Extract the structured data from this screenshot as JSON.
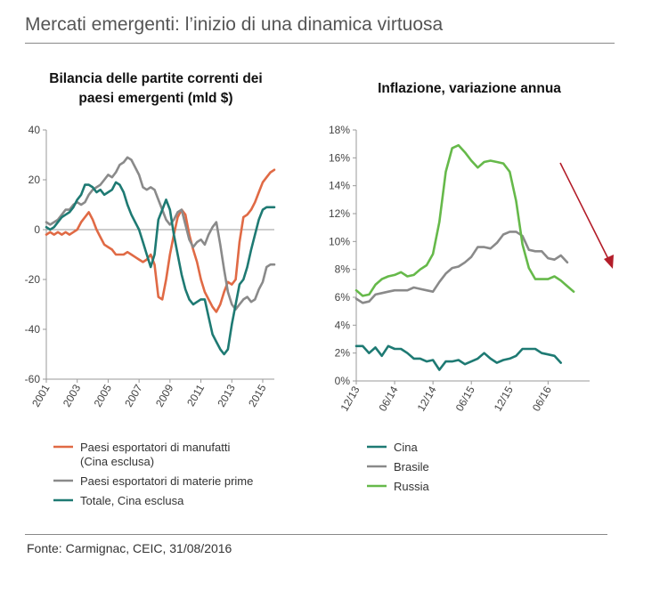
{
  "header": {
    "title": "Mercati emergenti: l’inizio di una dinamica virtuosa"
  },
  "source": "Fonte: Carmignac, CEIC, 31/08/2016",
  "colors": {
    "orange": "#e06a45",
    "gray": "#8a8a8a",
    "teal": "#1e7a73",
    "green": "#66b94a",
    "arrow": "#b31d29",
    "axis": "#999999"
  },
  "chart_data": [
    {
      "type": "line",
      "title_lines": [
        "Bilancia delle partite correnti dei",
        "paesi emergenti (mld $)"
      ],
      "xlim": [
        2001,
        2015.75
      ],
      "ylim": [
        -60,
        40
      ],
      "yticks": [
        40,
        20,
        0,
        -20,
        -40,
        -60
      ],
      "ytick_labels": [
        "40",
        "20",
        "0",
        "-20",
        "-40",
        "-60"
      ],
      "xticks": [
        2001,
        2003,
        2005,
        2007,
        2009,
        2011,
        2013,
        2015
      ],
      "xtick_labels": [
        "2001",
        "2003",
        "2005",
        "2007",
        "2009",
        "2011",
        "2013",
        "2015"
      ],
      "series": [
        {
          "name": "Paesi esportatori di manufatti",
          "name_line2": "(Cina esclusa)",
          "color": "orange",
          "x": [
            2001,
            2001.25,
            2001.5,
            2001.75,
            2002,
            2002.25,
            2002.5,
            2002.75,
            2003,
            2003.25,
            2003.5,
            2003.75,
            2004,
            2004.25,
            2004.5,
            2004.75,
            2005,
            2005.25,
            2005.5,
            2005.75,
            2006,
            2006.25,
            2006.5,
            2006.75,
            2007,
            2007.25,
            2007.5,
            2007.75,
            2008,
            2008.25,
            2008.5,
            2008.75,
            2009,
            2009.25,
            2009.5,
            2009.75,
            2010,
            2010.25,
            2010.5,
            2010.75,
            2011,
            2011.25,
            2011.5,
            2011.75,
            2012,
            2012.25,
            2012.5,
            2012.75,
            2013,
            2013.25,
            2013.5,
            2013.75,
            2014,
            2014.25,
            2014.5,
            2014.75,
            2015,
            2015.25,
            2015.5,
            2015.75
          ],
          "values": [
            -2,
            -1,
            -2,
            -1,
            -2,
            -1,
            -2,
            -1,
            0,
            3,
            5,
            7,
            4,
            0,
            -3,
            -6,
            -7,
            -8,
            -10,
            -10,
            -10,
            -9,
            -10,
            -11,
            -12,
            -13,
            -12,
            -10,
            -14,
            -27,
            -28,
            -20,
            -10,
            -2,
            5,
            8,
            6,
            -2,
            -8,
            -13,
            -20,
            -25,
            -28,
            -31,
            -33,
            -30,
            -25,
            -21,
            -22,
            -20,
            -5,
            5,
            6,
            8,
            11,
            15,
            19,
            21,
            23,
            24
          ]
        },
        {
          "name": "Paesi esportatori di materie prime",
          "color": "gray",
          "x": [
            2001,
            2001.25,
            2001.5,
            2001.75,
            2002,
            2002.25,
            2002.5,
            2002.75,
            2003,
            2003.25,
            2003.5,
            2003.75,
            2004,
            2004.25,
            2004.5,
            2004.75,
            2005,
            2005.25,
            2005.5,
            2005.75,
            2006,
            2006.25,
            2006.5,
            2006.75,
            2007,
            2007.25,
            2007.5,
            2007.75,
            2008,
            2008.25,
            2008.5,
            2008.75,
            2009,
            2009.25,
            2009.5,
            2009.75,
            2010,
            2010.25,
            2010.5,
            2010.75,
            2011,
            2011.25,
            2011.5,
            2011.75,
            2012,
            2012.25,
            2012.5,
            2012.75,
            2013,
            2013.25,
            2013.5,
            2013.75,
            2014,
            2014.25,
            2014.5,
            2014.75,
            2015,
            2015.25,
            2015.5,
            2015.75
          ],
          "values": [
            3,
            2,
            3,
            4,
            6,
            8,
            8,
            10,
            11,
            10,
            11,
            14,
            16,
            17,
            18,
            20,
            22,
            21,
            23,
            26,
            27,
            29,
            28,
            25,
            22,
            17,
            16,
            17,
            16,
            12,
            8,
            4,
            2,
            4,
            7,
            8,
            2,
            -4,
            -7,
            -5,
            -4,
            -6,
            -2,
            1,
            3,
            -6,
            -16,
            -25,
            -30,
            -32,
            -30,
            -28,
            -27,
            -29,
            -28,
            -24,
            -21,
            -15,
            -14,
            -14
          ]
        },
        {
          "name": "Totale, Cina esclusa",
          "color": "teal",
          "x": [
            2001,
            2001.25,
            2001.5,
            2001.75,
            2002,
            2002.25,
            2002.5,
            2002.75,
            2003,
            2003.25,
            2003.5,
            2003.75,
            2004,
            2004.25,
            2004.5,
            2004.75,
            2005,
            2005.25,
            2005.5,
            2005.75,
            2006,
            2006.25,
            2006.5,
            2006.75,
            2007,
            2007.25,
            2007.5,
            2007.75,
            2008,
            2008.25,
            2008.5,
            2008.75,
            2009,
            2009.25,
            2009.5,
            2009.75,
            2010,
            2010.25,
            2010.5,
            2010.75,
            2011,
            2011.25,
            2011.5,
            2011.75,
            2012,
            2012.25,
            2012.5,
            2012.75,
            2013,
            2013.25,
            2013.5,
            2013.75,
            2014,
            2014.25,
            2014.5,
            2014.75,
            2015,
            2015.25,
            2015.5,
            2015.75
          ],
          "values": [
            1,
            0,
            1,
            3,
            5,
            6,
            7,
            9,
            12,
            14,
            18,
            18,
            17,
            15,
            16,
            14,
            15,
            16,
            19,
            18,
            15,
            10,
            6,
            3,
            0,
            -5,
            -10,
            -15,
            -10,
            4,
            8,
            12,
            8,
            -2,
            -10,
            -18,
            -24,
            -28,
            -30,
            -29,
            -28,
            -28,
            -35,
            -42,
            -45,
            -48,
            -50,
            -48,
            -38,
            -30,
            -22,
            -20,
            -15,
            -8,
            -2,
            4,
            8,
            9,
            9,
            9
          ]
        }
      ]
    },
    {
      "type": "line",
      "title_lines": [
        "Inflazione, variazione annua"
      ],
      "xlim": [
        0,
        36.5
      ],
      "ylim": [
        0,
        18
      ],
      "yticks": [
        0,
        2,
        4,
        6,
        8,
        10,
        12,
        14,
        16,
        18
      ],
      "ytick_labels": [
        "0%",
        "2%",
        "4%",
        "6%",
        "8%",
        "10%",
        "12%",
        "14%",
        "16%",
        "18%"
      ],
      "xticks": [
        0,
        6,
        12,
        18,
        24,
        30
      ],
      "xtick_labels": [
        "12/13",
        "06/14",
        "12/14",
        "06/15",
        "12/15",
        "06/16"
      ],
      "series": [
        {
          "name": "Cina",
          "color": "teal",
          "values": [
            2.5,
            2.5,
            2.0,
            2.4,
            1.8,
            2.5,
            2.3,
            2.3,
            2.0,
            1.6,
            1.6,
            1.4,
            1.5,
            0.8,
            1.4,
            1.4,
            1.5,
            1.2,
            1.4,
            1.6,
            2.0,
            1.6,
            1.3,
            1.5,
            1.6,
            1.8,
            2.3,
            2.3,
            2.3,
            2.0,
            1.9,
            1.8,
            1.3
          ]
        },
        {
          "name": "Brasile",
          "color": "gray",
          "values": [
            5.9,
            5.6,
            5.7,
            6.2,
            6.3,
            6.4,
            6.5,
            6.5,
            6.5,
            6.7,
            6.6,
            6.5,
            6.4,
            7.1,
            7.7,
            8.1,
            8.2,
            8.5,
            8.9,
            9.6,
            9.6,
            9.5,
            9.9,
            10.5,
            10.7,
            10.7,
            10.4,
            9.4,
            9.3,
            9.3,
            8.8,
            8.7,
            9.0,
            8.5
          ]
        },
        {
          "name": "Russia",
          "color": "green",
          "values": [
            6.5,
            6.1,
            6.2,
            6.9,
            7.3,
            7.5,
            7.6,
            7.8,
            7.5,
            7.6,
            8.0,
            8.3,
            9.1,
            11.4,
            15.0,
            16.7,
            16.9,
            16.4,
            15.8,
            15.3,
            15.7,
            15.8,
            15.7,
            15.6,
            15.0,
            12.9,
            9.8,
            8.1,
            7.3,
            7.3,
            7.3,
            7.5,
            7.2,
            6.8,
            6.4
          ]
        }
      ]
    }
  ]
}
